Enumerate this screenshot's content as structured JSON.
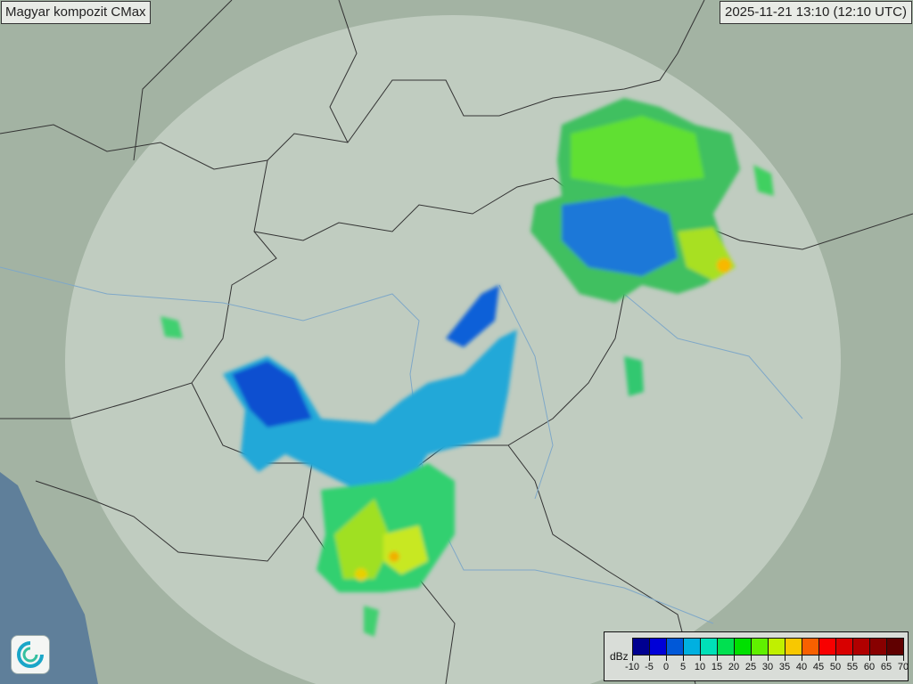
{
  "header": {
    "title": "Magyar kompozit  CMax",
    "timestamp": "2025-11-21 13:10 (12:10 UTC)"
  },
  "legend": {
    "unit": "dBz",
    "colors": [
      "#000090",
      "#0000d8",
      "#0058d8",
      "#00b0e0",
      "#00e0b8",
      "#00e050",
      "#00e000",
      "#60f000",
      "#c0f000",
      "#f8c800",
      "#f86000",
      "#f80000",
      "#d80000",
      "#b00000",
      "#880000",
      "#600000"
    ],
    "labels": [
      "-10",
      "-5",
      "0",
      "5",
      "10",
      "15",
      "20",
      "25",
      "30",
      "35",
      "40",
      "45",
      "50",
      "55",
      "60",
      "65",
      "70"
    ]
  },
  "map": {
    "colors": {
      "land": "#a3b3a3",
      "coverage": "#c3cfc3",
      "border": "#333333",
      "rivers": "#7fa8c8",
      "sea": "#5f7f9a"
    }
  },
  "logo": {
    "icon": "swirl-logo-icon"
  }
}
